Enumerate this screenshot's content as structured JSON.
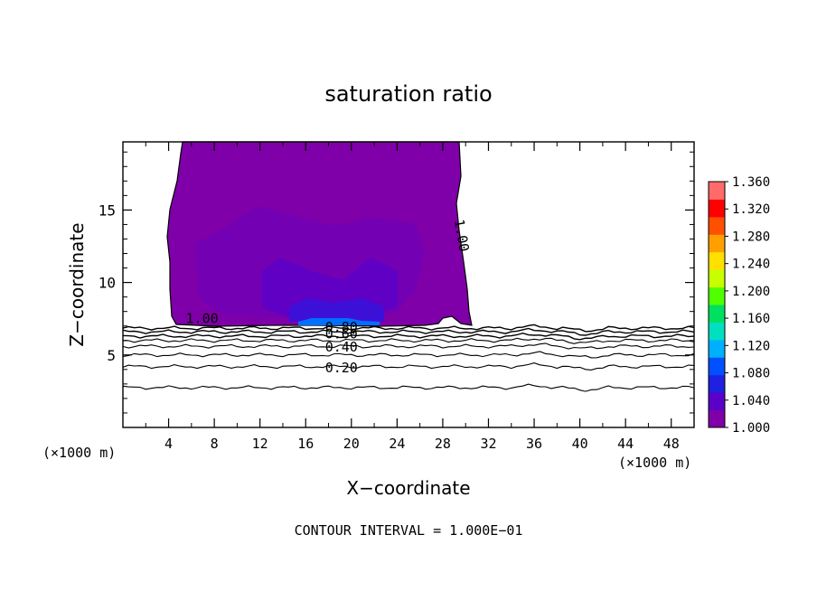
{
  "chart_data": {
    "type": "contour",
    "title": "saturation ratio",
    "xlabel": "X−coordinate",
    "ylabel": "Z−coordinate",
    "x_unit_left": "(×1000 m)",
    "x_unit_right": "(×1000 m)",
    "footer": "CONTOUR INTERVAL = 1.000E−01",
    "xlim": [
      0,
      50
    ],
    "ylim": [
      0,
      19.7
    ],
    "x_ticks": [
      4,
      8,
      12,
      16,
      20,
      24,
      28,
      32,
      36,
      40,
      44,
      48
    ],
    "x_tick_labels": [
      "4",
      "8",
      "12",
      "16",
      "20",
      "24",
      "28",
      "32",
      "36",
      "40",
      "44",
      "48"
    ],
    "y_ticks": [
      5,
      10,
      15
    ],
    "y_tick_labels": [
      "5",
      "10",
      "15"
    ],
    "colorbar": {
      "range": [
        1.0,
        1.36
      ],
      "labels": [
        "1.360",
        "1.320",
        "1.280",
        "1.240",
        "1.200",
        "1.160",
        "1.120",
        "1.080",
        "1.040",
        "1.000"
      ],
      "colors": [
        "#7f00a8",
        "#5a00c8",
        "#2020e0",
        "#0050ff",
        "#00b0ff",
        "#00e0c0",
        "#00e060",
        "#50ff00",
        "#c8ff00",
        "#ffe000",
        "#ffa000",
        "#ff5000",
        "#ff0000",
        "#ff6a6a"
      ]
    },
    "cloud_fill": "#7f00a8",
    "contour_labels": [
      {
        "text": "1.00",
        "x": 5.5,
        "z": 7.2
      },
      {
        "text": "1.00",
        "x": 29.0,
        "z": 14.3,
        "rotate": 80
      },
      {
        "text": "0.80",
        "x": 17.7,
        "z": 6.6
      },
      {
        "text": "0.60",
        "x": 17.7,
        "z": 6.15
      },
      {
        "text": "0.40",
        "x": 17.7,
        "z": 5.25
      },
      {
        "text": "0.20",
        "x": 17.7,
        "z": 3.8
      }
    ],
    "contour_levels_z": [
      6.85,
      6.6,
      6.3,
      6.0,
      5.6,
      5.0,
      4.2,
      2.75
    ]
  }
}
